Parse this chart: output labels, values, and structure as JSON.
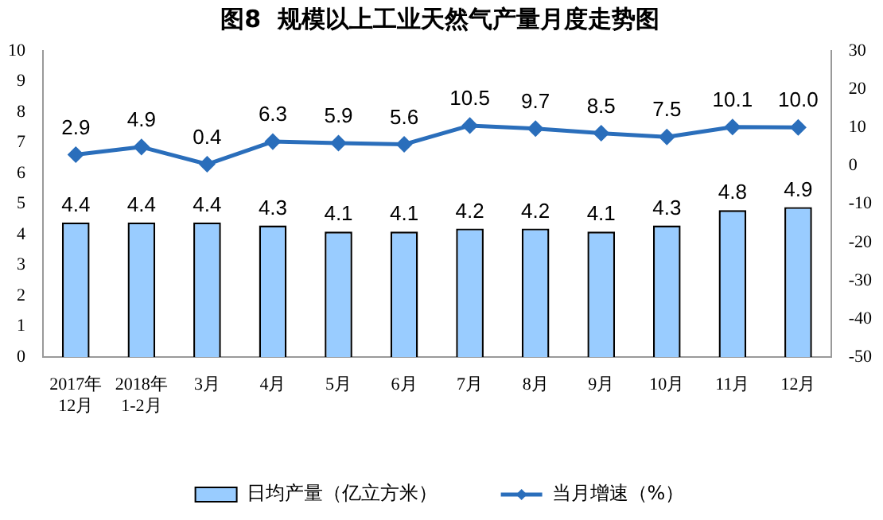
{
  "chart_data": {
    "type": "bar",
    "title": "图8  规模以上工业天然气产量月度走势图",
    "categories": [
      "2017年\n12月",
      "2018年\n1-2月",
      "3月",
      "4月",
      "5月",
      "6月",
      "7月",
      "8月",
      "9月",
      "10月",
      "11月",
      "12月"
    ],
    "series": [
      {
        "name": "日均产量（亿立方米）",
        "color": "#99ccff",
        "values": [
          4.4,
          4.4,
          4.4,
          4.3,
          4.1,
          4.1,
          4.2,
          4.2,
          4.1,
          4.3,
          4.8,
          4.9
        ],
        "value_labels": [
          "4.4",
          "4.4",
          "4.4",
          "4.3",
          "4.1",
          "4.1",
          "4.2",
          "4.2",
          "4.1",
          "4.3",
          "4.8",
          "4.9"
        ]
      },
      {
        "name": "当月增速（%）",
        "type": "line",
        "axis": "y2",
        "color": "#2a6ebb",
        "marker": "diamond",
        "values": [
          2.9,
          4.9,
          0.4,
          6.3,
          5.9,
          5.6,
          10.5,
          9.7,
          8.5,
          7.5,
          10.1,
          10.0
        ],
        "value_labels": [
          "2.9",
          "4.9",
          "0.4",
          "6.3",
          "5.9",
          "5.6",
          "10.5",
          "9.7",
          "8.5",
          "7.5",
          "10.1",
          "10.0"
        ]
      }
    ],
    "ylim": [
      0,
      10
    ],
    "yticks": [
      0,
      1,
      2,
      3,
      4,
      5,
      6,
      7,
      8,
      9,
      10
    ],
    "y2lim": [
      -50,
      30
    ],
    "y2ticks": [
      -50,
      -40,
      -30,
      -20,
      -10,
      0,
      10,
      20,
      30
    ],
    "grid": false,
    "legend": "bottom"
  }
}
